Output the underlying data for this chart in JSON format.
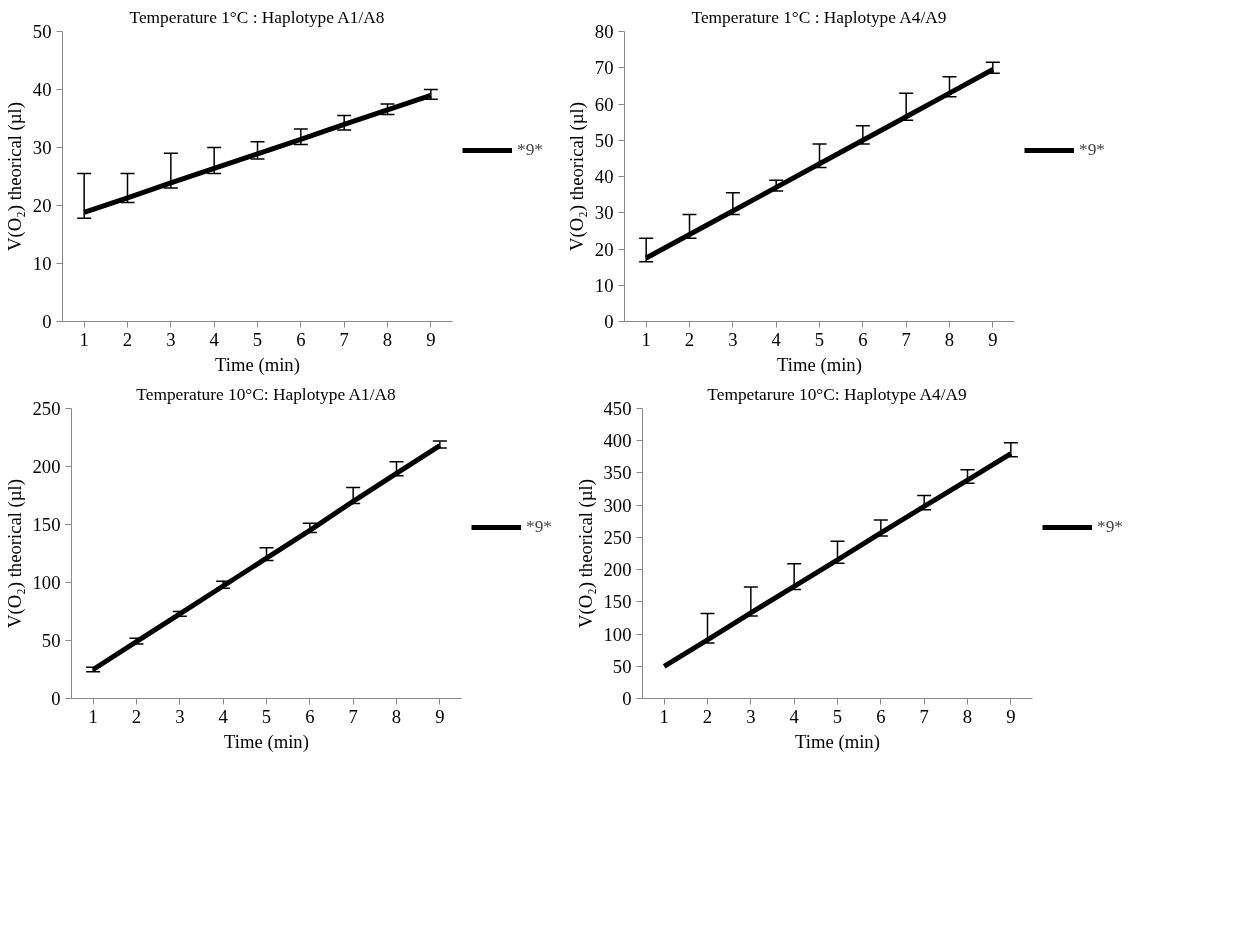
{
  "chart_data": [
    {
      "type": "line",
      "title": "Temperature 1°C : Haplotype A1/A8",
      "xlabel": "Time (min)",
      "ylabel": "V(O₂) theorical (µl)",
      "categories": [
        "1",
        "2",
        "3",
        "4",
        "5",
        "6",
        "7",
        "8",
        "9"
      ],
      "ylim": [
        0,
        50
      ],
      "yticks": [
        0,
        10,
        20,
        30,
        40,
        50
      ],
      "grid": false,
      "legend": "right",
      "marker": "none",
      "line_style": "solid",
      "series": [
        {
          "name": "*9*",
          "color": "#000000",
          "values": [
            18.8,
            21.3,
            23.9,
            26.4,
            28.9,
            31.4,
            34.0,
            36.5,
            39.0
          ],
          "errors": [
            [
              17.8,
              25.5
            ],
            [
              20.5,
              25.5
            ],
            [
              23,
              29
            ],
            [
              25.5,
              30
            ],
            [
              28,
              31
            ],
            [
              30.5,
              33.2
            ],
            [
              33,
              35.5
            ],
            [
              35.7,
              37.5
            ],
            [
              38.3,
              40
            ]
          ]
        }
      ]
    },
    {
      "type": "line",
      "title": "Temperature 1°C : Haplotype A4/A9",
      "xlabel": "Time (min)",
      "ylabel": "V(O₂) theorical (µl)",
      "categories": [
        "1",
        "2",
        "3",
        "4",
        "5",
        "6",
        "7",
        "8",
        "9"
      ],
      "ylim": [
        0,
        80
      ],
      "yticks": [
        0,
        10,
        20,
        30,
        40,
        50,
        60,
        70,
        80
      ],
      "grid": false,
      "legend": "right",
      "marker": "none",
      "line_style": "solid",
      "series": [
        {
          "name": "*9*",
          "color": "#000000",
          "values": [
            17.5,
            24,
            30.5,
            37,
            43.5,
            50,
            56.5,
            63,
            69.5
          ],
          "errors": [
            [
              16.5,
              23
            ],
            [
              23,
              29.5
            ],
            [
              29.5,
              35.5
            ],
            [
              36,
              39
            ],
            [
              42.5,
              49
            ],
            [
              49,
              54
            ],
            [
              55.5,
              63
            ],
            [
              62,
              67.5
            ],
            [
              68.5,
              71.5
            ]
          ]
        }
      ]
    },
    {
      "type": "line",
      "title": "Temperature 10°C: Haplotype A1/A8",
      "xlabel": "Time (min)",
      "ylabel": "V(O₂) theorical (µl)",
      "categories": [
        "1",
        "2",
        "3",
        "4",
        "5",
        "6",
        "7",
        "8",
        "9"
      ],
      "ylim": [
        0,
        250
      ],
      "yticks": [
        0,
        50,
        100,
        150,
        200,
        250
      ],
      "grid": false,
      "legend": "right",
      "marker": "none",
      "line_style": "solid",
      "series": [
        {
          "name": "*9*",
          "color": "#000000",
          "values": [
            25,
            49,
            73,
            97,
            121,
            145,
            170,
            194,
            218
          ],
          "errors": [
            [
              23,
              27
            ],
            [
              47,
              52
            ],
            [
              71,
              75
            ],
            [
              95,
              101
            ],
            [
              119,
              130
            ],
            [
              143,
              151
            ],
            [
              168,
              182
            ],
            [
              192,
              204
            ],
            [
              216,
              222
            ]
          ]
        }
      ]
    },
    {
      "type": "line",
      "title": "Tempetarure 10°C: Haplotype A4/A9",
      "xlabel": "Time (min)",
      "ylabel": "V(O₂) theorical (µl)",
      "categories": [
        "1",
        "2",
        "3",
        "4",
        "5",
        "6",
        "7",
        "8",
        "9"
      ],
      "ylim": [
        0,
        450
      ],
      "yticks": [
        0,
        50,
        100,
        150,
        200,
        250,
        300,
        350,
        400,
        450
      ],
      "grid": false,
      "legend": "right",
      "marker": "none",
      "line_style": "solid",
      "series": [
        {
          "name": "*9*",
          "color": "#000000",
          "values": [
            50,
            91,
            133,
            174,
            215,
            257,
            298,
            339,
            380
          ],
          "errors": [
            null,
            [
              86,
              132
            ],
            [
              128,
              173
            ],
            [
              169,
              209
            ],
            [
              210,
              244
            ],
            [
              252,
              277
            ],
            [
              293,
              315
            ],
            [
              334,
              355
            ],
            [
              375,
              397
            ]
          ]
        }
      ]
    }
  ]
}
